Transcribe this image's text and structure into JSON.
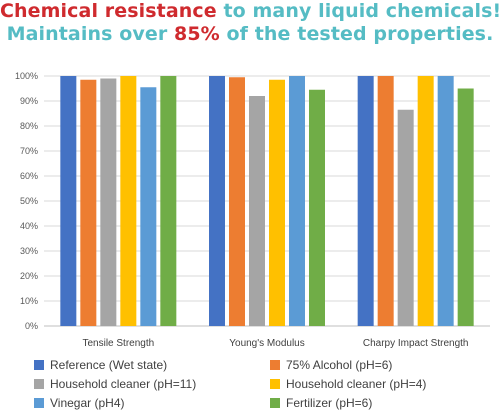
{
  "headline": {
    "line1_part1": "Chemical resistance",
    "line1_part2": " to many liquid chemicals!",
    "line2_part1": "Maintains over ",
    "line2_part2": "85%",
    "line2_part3": " of the tested properties.",
    "colors": {
      "red": "#cf2a2e",
      "teal": "#55bcc4"
    }
  },
  "chart_data": {
    "type": "bar",
    "categories": [
      "Tensile Strength",
      "Young's Modulus",
      "Charpy Impact Strength"
    ],
    "series": [
      {
        "name": "Reference (Wet state)",
        "color": "#4472c4",
        "values": [
          100,
          100,
          100
        ]
      },
      {
        "name": "75% Alcohol (pH=6)",
        "color": "#ed7d31",
        "values": [
          98.5,
          99.5,
          100
        ]
      },
      {
        "name": "Household cleaner (pH=11)",
        "color": "#a5a5a5",
        "values": [
          99,
          92,
          86.5
        ]
      },
      {
        "name": "Household cleaner (pH=4)",
        "color": "#ffc000",
        "values": [
          100,
          98.5,
          100
        ]
      },
      {
        "name": "Vinegar (pH4)",
        "color": "#5b9bd5",
        "values": [
          95.5,
          100,
          100
        ]
      },
      {
        "name": "Fertilizer (pH=6)",
        "color": "#70ad47",
        "values": [
          100,
          94.5,
          95
        ]
      }
    ],
    "y_ticks": [
      "0%",
      "10%",
      "20%",
      "30%",
      "40%",
      "50%",
      "60%",
      "70%",
      "80%",
      "90%",
      "100%"
    ],
    "ylim": [
      0,
      100
    ],
    "grid": true,
    "legend_position": "bottom"
  }
}
